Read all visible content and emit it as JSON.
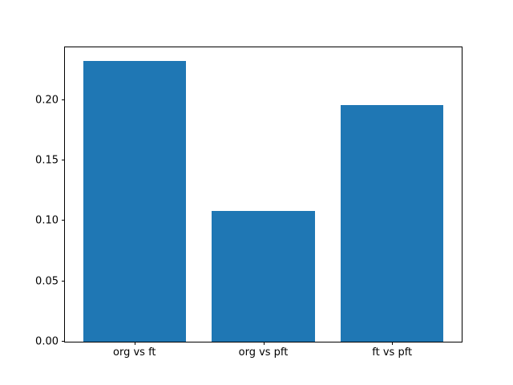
{
  "chart_data": {
    "type": "bar",
    "categories": [
      "org vs ft",
      "org vs pft",
      "ft vs pft"
    ],
    "values": [
      0.232,
      0.108,
      0.196
    ],
    "title": "",
    "xlabel": "",
    "ylabel": "",
    "ylim": [
      0,
      0.2436
    ],
    "xlim": [
      -0.54,
      2.54
    ],
    "bar_width": 0.8,
    "yticks": [
      0.0,
      0.05,
      0.1,
      0.15,
      0.2
    ],
    "ytick_labels": [
      "0.00",
      "0.05",
      "0.10",
      "0.15",
      "0.20"
    ],
    "bar_color": "#1f77b4",
    "axes_color": "#000000",
    "background_color": "#ffffff",
    "grid": false,
    "legend": null
  }
}
